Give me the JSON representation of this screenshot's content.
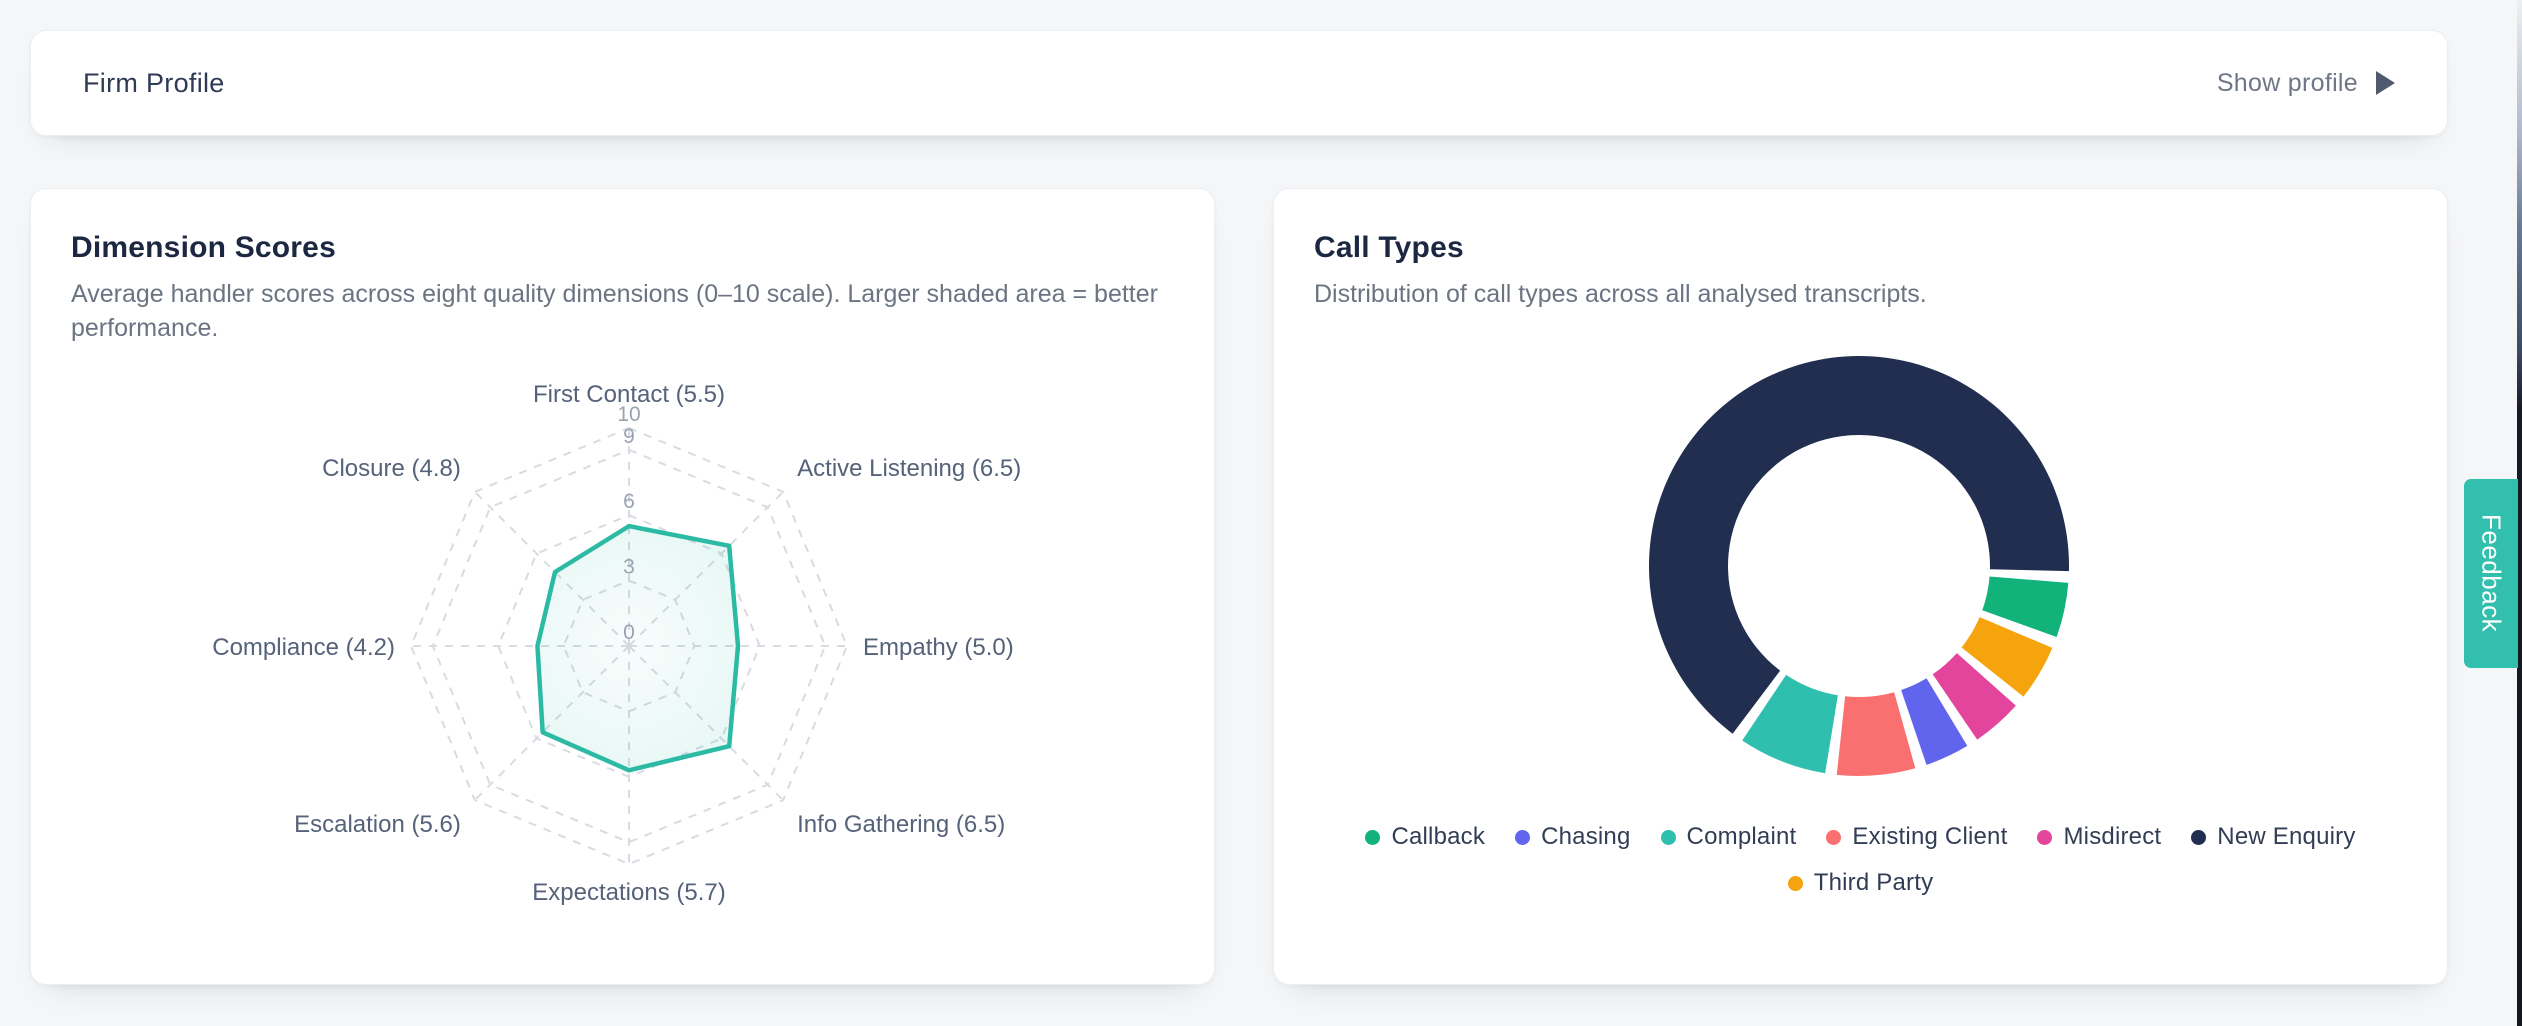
{
  "header": {
    "title": "Firm Profile",
    "action_label": "Show profile",
    "action_icon": "play-right-icon"
  },
  "feedback_tab": {
    "label": "Feedback",
    "color": "#32bfae"
  },
  "cards": {
    "dimension_scores": {
      "title": "Dimension Scores",
      "description": "Average handler scores across eight quality dimensions (0–10 scale). Larger shaded area = better performance."
    },
    "call_types": {
      "title": "Call Types",
      "description": "Distribution of call types across all analysed transcripts."
    }
  },
  "chart_data": [
    {
      "type": "radar",
      "title": "Dimension Scores",
      "categories": [
        "First Contact",
        "Active Listening",
        "Empathy",
        "Info Gathering",
        "Expectations",
        "Escalation",
        "Compliance",
        "Closure"
      ],
      "values": [
        5.5,
        6.5,
        5.0,
        6.5,
        5.7,
        5.6,
        4.2,
        4.8
      ],
      "axis_label_format": "{name} ({value})",
      "scale": {
        "min": 0,
        "max": 10,
        "tick_labels": [
          0,
          3,
          6,
          9,
          10
        ],
        "rings": [
          3,
          6,
          9,
          10
        ]
      },
      "grid": "dashed",
      "grid_color": "#d7dbe2",
      "stroke_color": "#2cbaa5",
      "fill_color_rgb": "42,186,165"
    },
    {
      "type": "donut",
      "title": "Call Types",
      "slices": [
        {
          "label": "Callback",
          "pct": 5.1,
          "color": "#12b27b"
        },
        {
          "label": "Third Party",
          "pct": 5.2,
          "color": "#f5a40d"
        },
        {
          "label": "Misdirect",
          "pct": 4.8,
          "color": "#e2459b"
        },
        {
          "label": "Chasing",
          "pct": 4.3,
          "color": "#6165ee"
        },
        {
          "label": "Existing Client",
          "pct": 6.9,
          "color": "#fa7070"
        },
        {
          "label": "Complaint",
          "pct": 7.7,
          "color": "#2fbfae"
        },
        {
          "label": "New Enquiry",
          "pct": 66.0,
          "color": "#212e4f"
        }
      ],
      "start_angle_deg": 93,
      "pad_angle_deg": 3.2,
      "legend_rows": [
        [
          "Callback",
          "Chasing",
          "Complaint",
          "Existing Client",
          "Misdirect",
          "New Enquiry"
        ],
        [
          "Third Party"
        ]
      ],
      "legend_position": "bottom"
    }
  ]
}
